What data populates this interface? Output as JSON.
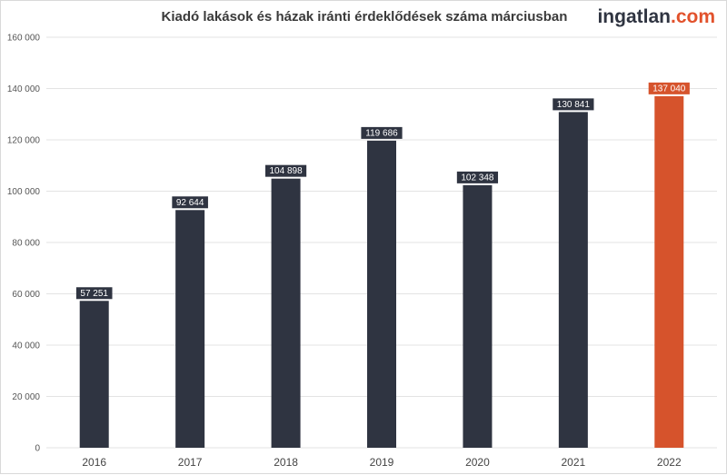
{
  "logo": {
    "brand": "ingatlan",
    "tld": ".com"
  },
  "colors": {
    "bar": "#2f3441",
    "highlight": "#d6532c",
    "grid": "#e3e3e3",
    "label_bg_default": "#2f3441",
    "label_bg_highlight": "#d6532c"
  },
  "chart_data": {
    "type": "bar",
    "title": "Kiadó lakások és házak iránti érdeklődések száma márciusban",
    "xlabel": "",
    "ylabel": "",
    "ylim": [
      0,
      160000
    ],
    "yticks": [
      0,
      20000,
      40000,
      60000,
      80000,
      100000,
      120000,
      140000,
      160000
    ],
    "ytick_labels": [
      "0",
      "20 000",
      "40 000",
      "60 000",
      "80 000",
      "100 000",
      "120 000",
      "140 000",
      "160 000"
    ],
    "categories": [
      "2016",
      "2017",
      "2018",
      "2019",
      "2020",
      "2021",
      "2022"
    ],
    "values": [
      57251,
      92644,
      104898,
      119686,
      102348,
      130841,
      137040
    ],
    "value_labels": [
      "57 251",
      "92 644",
      "104 898",
      "119 686",
      "102 348",
      "130 841",
      "137 040"
    ],
    "highlight_category": "2022",
    "grid": true,
    "legend": "none"
  }
}
